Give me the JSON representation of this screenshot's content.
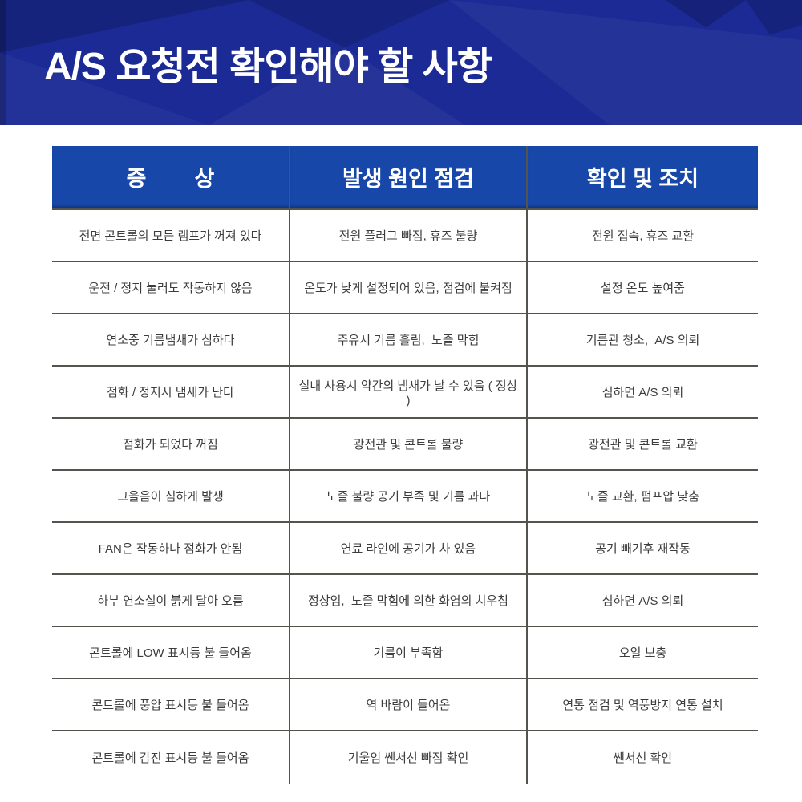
{
  "colors": {
    "banner_bg": "#1b2a94",
    "header_bg": "#1747a8",
    "border_color": "#55534e",
    "body_text": "#3c3c3c",
    "header_text": "#ffffff"
  },
  "banner": {
    "title": "A/S 요청전 확인해야 할 사항"
  },
  "table": {
    "headers": [
      "증        상",
      "발생 원인 점검",
      "확인 및 조치"
    ],
    "rows": [
      [
        "전면 콘트롤의 모든 램프가 꺼져 있다",
        "전원 플러그 빠짐, 휴즈 불량",
        "전원 접속, 휴즈 교환"
      ],
      [
        "운전 / 정지 눌러도 작동하지 않음",
        "온도가 낮게 설정되어 있음, 점검에 불켜짐",
        "설정 온도 높여줌"
      ],
      [
        "연소중 기름냄새가 심하다",
        "주유시 기름 흘림,  노즐 막힘",
        "기름관 청소,  A/S 의뢰"
      ],
      [
        "점화 / 정지시 냄새가 난다",
        "실내 사용시 약간의 냄새가 날 수 있음 ( 정상 )",
        "심하면 A/S 의뢰"
      ],
      [
        "점화가 되었다 꺼짐",
        "광전관 및 콘트롤 불량",
        "광전관 및 콘트롤 교환"
      ],
      [
        "그을음이 심하게 발생",
        "노즐 불량 공기 부족 및 기름 과다",
        "노즐 교환, 펌프압 낮춤"
      ],
      [
        "FAN은 작동하나 점화가 안됨",
        "연료 라인에 공기가 차 있음",
        "공기 빼기후 재작동"
      ],
      [
        "하부 연소실이 붉게 달아 오름",
        "정상임,  노즐 막힘에 의한 화염의 치우침",
        "심하면 A/S 의뢰"
      ],
      [
        "콘트롤에 LOW 표시등 불 들어옴",
        "기름이 부족함",
        "오일 보충"
      ],
      [
        "콘트롤에 풍압 표시등 불 들어옴",
        "역 바람이 들어옴",
        "연통 점검 및 역풍방지 연통 설치"
      ],
      [
        "콘트롤에 감진 표시등 불 들어옴",
        "기울임 쎈서선 빠짐 확인",
        "쎈서선 확인"
      ]
    ]
  }
}
